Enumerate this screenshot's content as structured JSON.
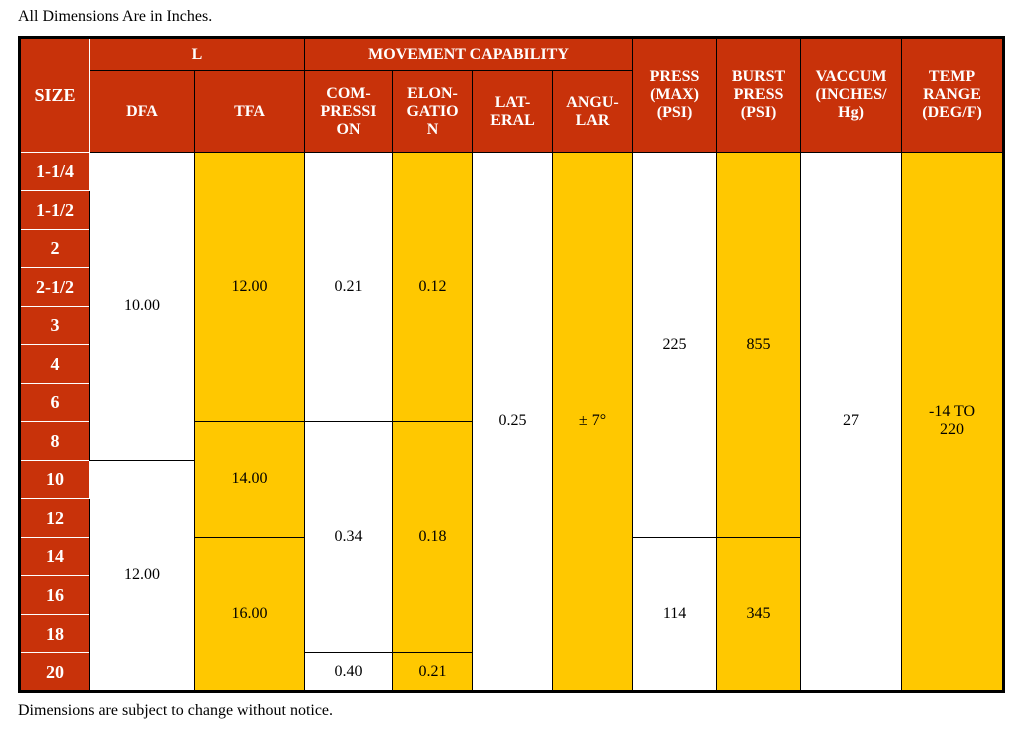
{
  "top_note": "All Dimensions Are in Inches.",
  "bottom_note": "Dimensions are subject to change without notice.",
  "headers": {
    "size": "SIZE",
    "l": "L",
    "movement": "MOVEMENT CAPABILITY",
    "dfa": "DFA",
    "tfa": "TFA",
    "compression": "COM-\nPRESSI\nON",
    "elongation": "ELON-\nGATIO\nN",
    "lateral": "LAT-\nERAL",
    "angular": "ANGU-\nLAR",
    "press": "PRESS\n(MAX)\n(PSI)",
    "burst": "BURST\nPRESS\n(PSI)",
    "vacuum": "VACCUM\n(INCHES/\nHg)",
    "temp": "TEMP\nRANGE\n(DEG/F)"
  },
  "sizes": [
    "1-1/4",
    "1-1/2",
    "2",
    "2-1/2",
    "3",
    "4",
    "6",
    "8",
    "10",
    "12",
    "14",
    "16",
    "18",
    "20"
  ],
  "values": {
    "dfa_a": "10.00",
    "dfa_b": "12.00",
    "tfa_a": "12.00",
    "tfa_b": "14.00",
    "tfa_c": "16.00",
    "comp_a": "0.21",
    "comp_b": "0.34",
    "comp_c": "0.40",
    "elong_a": "0.12",
    "elong_b": "0.18",
    "elong_c": "0.21",
    "lateral": "0.25",
    "angular": "± 7°",
    "press_a": "225",
    "press_b": "114",
    "burst_a": "855",
    "burst_b": "345",
    "vacuum": "27",
    "temp": "-14 TO\n220"
  }
}
